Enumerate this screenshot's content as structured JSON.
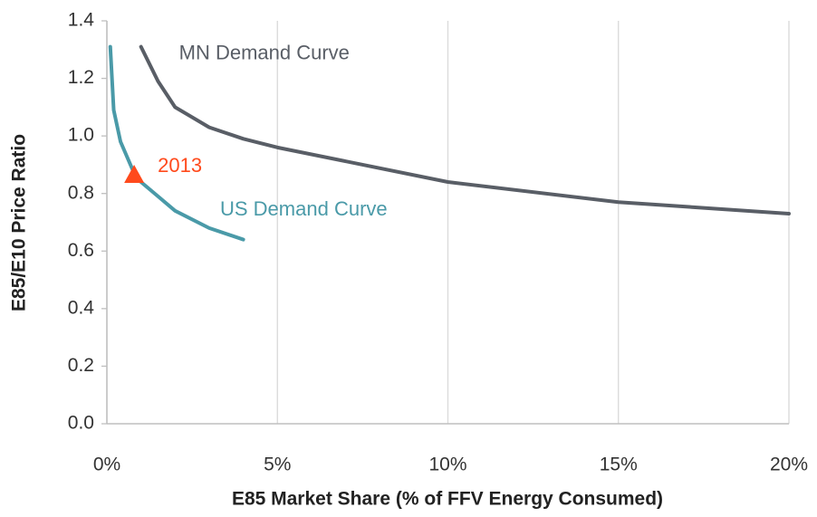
{
  "chart_data": {
    "type": "line",
    "x_label": "E85 Market Share (% of FFV Energy Consumed)",
    "y_label": "E85/E10 Price Ratio",
    "xlim": [
      0,
      20
    ],
    "xticks": [
      {
        "value": 0,
        "label": "0%"
      },
      {
        "value": 5,
        "label": "5%"
      },
      {
        "value": 10,
        "label": "10%"
      },
      {
        "value": 15,
        "label": "15%"
      },
      {
        "value": 20,
        "label": "20%"
      }
    ],
    "ylim": [
      0,
      1.4
    ],
    "yticks": [
      {
        "value": 0,
        "label": "0.0"
      },
      0.2,
      0.4,
      0.6,
      0.8,
      {
        "value": 1,
        "label": "1.0"
      },
      1.2,
      1.4
    ],
    "grid": true,
    "series": [
      {
        "name": "MN Demand Curve",
        "color": "#595e66",
        "x": [
          1.0,
          1.5,
          2.0,
          3.0,
          4.0,
          5.0,
          7.5,
          10.0,
          15.0,
          20.0
        ],
        "values": [
          1.31,
          1.19,
          1.1,
          1.03,
          0.99,
          0.96,
          0.9,
          0.84,
          0.77,
          0.73
        ]
      },
      {
        "name": "US Demand Curve",
        "color": "#4a9aa8",
        "x": [
          0.1,
          0.2,
          0.4,
          0.8,
          1.0,
          1.5,
          2.0,
          3.0,
          4.0
        ],
        "values": [
          1.31,
          1.09,
          0.98,
          0.87,
          0.84,
          0.79,
          0.74,
          0.68,
          0.64
        ]
      }
    ],
    "points": [
      {
        "label": "2013",
        "x": 0.8,
        "y": 0.865,
        "color": "#ff4a1c"
      }
    ]
  }
}
